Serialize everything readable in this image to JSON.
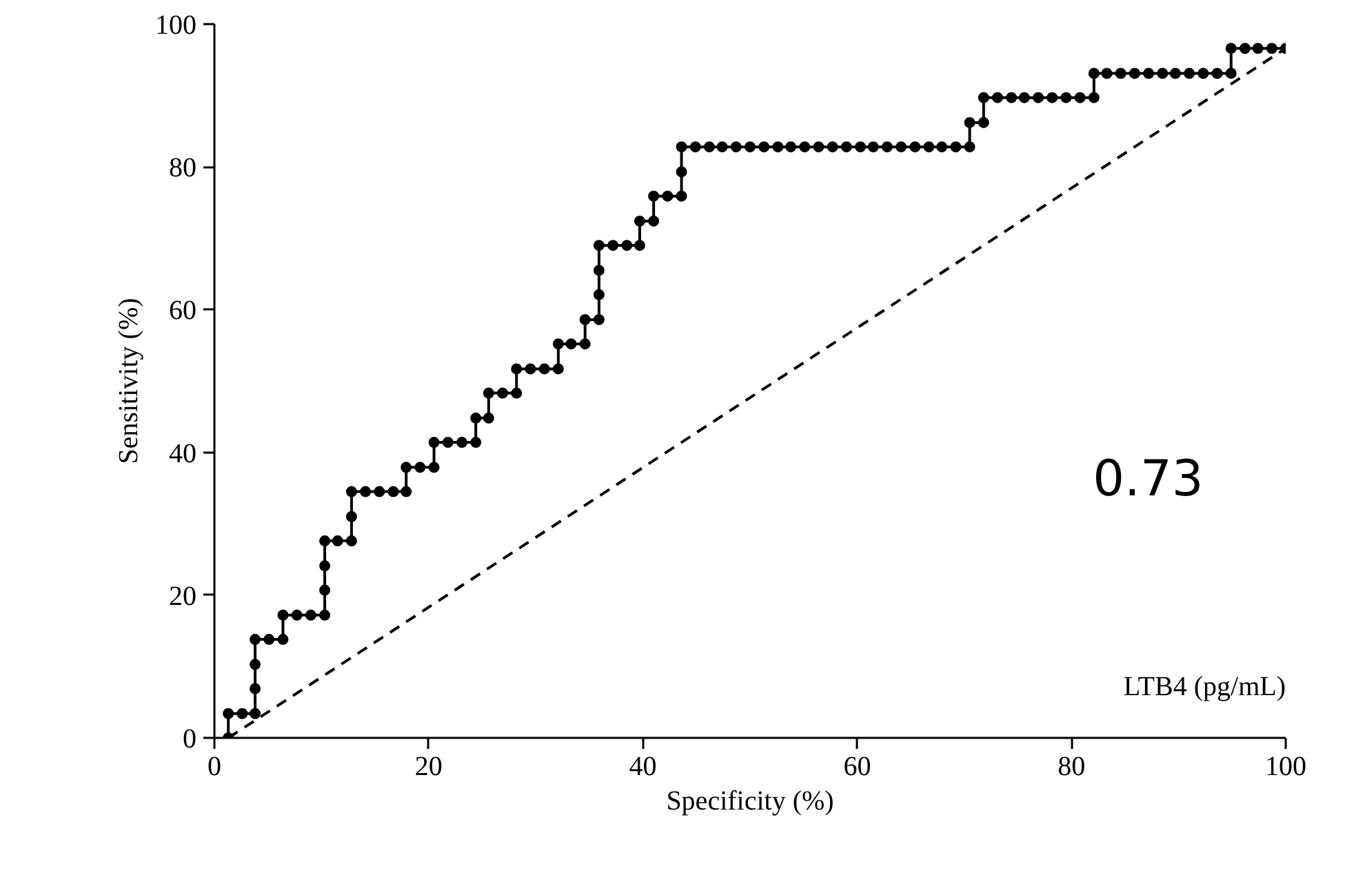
{
  "chart_data": {
    "type": "line",
    "xlabel": "Specificity (%)",
    "ylabel": "Sensitivity (%)",
    "xlim": [
      0,
      100
    ],
    "ylim": [
      0,
      100
    ],
    "xticks": [
      0,
      20,
      40,
      60,
      80,
      100
    ],
    "yticks": [
      0,
      20,
      40,
      60,
      80,
      100
    ],
    "grid": false,
    "marker": "circle",
    "line_style": "solid",
    "annotations": [
      "0.73",
      "LTB4 (pg/mL)"
    ],
    "series": [
      {
        "color": "#000000",
        "x": [
          1.3,
          1.3,
          2.6,
          3.8,
          3.8,
          3.8,
          3.8,
          5.1,
          6.4,
          6.4,
          7.7,
          9.0,
          10.3,
          10.3,
          10.3,
          10.3,
          11.5,
          12.8,
          12.8,
          12.8,
          14.1,
          15.4,
          16.7,
          17.9,
          17.9,
          19.2,
          20.5,
          20.5,
          21.8,
          23.1,
          24.4,
          24.4,
          25.6,
          25.6,
          26.9,
          28.2,
          28.2,
          29.5,
          30.8,
          32.1,
          32.1,
          33.3,
          34.6,
          34.6,
          35.9,
          35.9,
          35.9,
          35.9,
          37.2,
          38.5,
          39.7,
          39.7,
          41.0,
          41.0,
          42.3,
          43.6,
          43.6,
          43.6,
          44.9,
          46.2,
          47.4,
          48.7,
          50.0,
          51.3,
          52.6,
          53.8,
          55.1,
          56.4,
          57.7,
          59.0,
          60.3,
          61.5,
          62.8,
          64.1,
          65.4,
          66.7,
          67.9,
          69.2,
          70.5,
          70.5,
          71.8,
          71.8,
          73.1,
          74.4,
          75.6,
          76.9,
          78.2,
          79.5,
          80.8,
          82.1,
          82.1,
          83.3,
          84.6,
          85.9,
          87.2,
          88.5,
          89.7,
          91.0,
          92.3,
          93.6,
          94.9,
          94.9,
          96.2,
          97.4,
          98.7,
          100
        ],
        "values": [
          0,
          3.4,
          3.4,
          3.4,
          6.9,
          10.3,
          13.8,
          13.8,
          13.8,
          17.2,
          17.2,
          17.2,
          17.2,
          20.7,
          24.1,
          27.6,
          27.6,
          27.6,
          31.0,
          34.5,
          34.5,
          34.5,
          34.5,
          34.5,
          37.9,
          37.9,
          37.9,
          41.4,
          41.4,
          41.4,
          41.4,
          44.8,
          44.8,
          48.3,
          48.3,
          48.3,
          51.7,
          51.7,
          51.7,
          51.7,
          55.2,
          55.2,
          55.2,
          58.6,
          58.6,
          62.1,
          65.5,
          69.0,
          69.0,
          69.0,
          69.0,
          72.4,
          72.4,
          75.9,
          75.9,
          75.9,
          79.3,
          82.8,
          82.8,
          82.8,
          82.8,
          82.8,
          82.8,
          82.8,
          82.8,
          82.8,
          82.8,
          82.8,
          82.8,
          82.8,
          82.8,
          82.8,
          82.8,
          82.8,
          82.8,
          82.8,
          82.8,
          82.8,
          82.8,
          86.2,
          86.2,
          89.7,
          89.7,
          89.7,
          89.7,
          89.7,
          89.7,
          89.7,
          89.7,
          89.7,
          93.1,
          93.1,
          93.1,
          93.1,
          93.1,
          93.1,
          93.1,
          93.1,
          93.1,
          93.1,
          93.1,
          96.6,
          96.6,
          96.6,
          96.6,
          96.6
        ]
      },
      {
        "type": "line",
        "color": "#000000",
        "marker": "none",
        "line_style": "dashed",
        "x": [
          1.3,
          100
        ],
        "values": [
          0,
          96.6
        ]
      }
    ]
  }
}
